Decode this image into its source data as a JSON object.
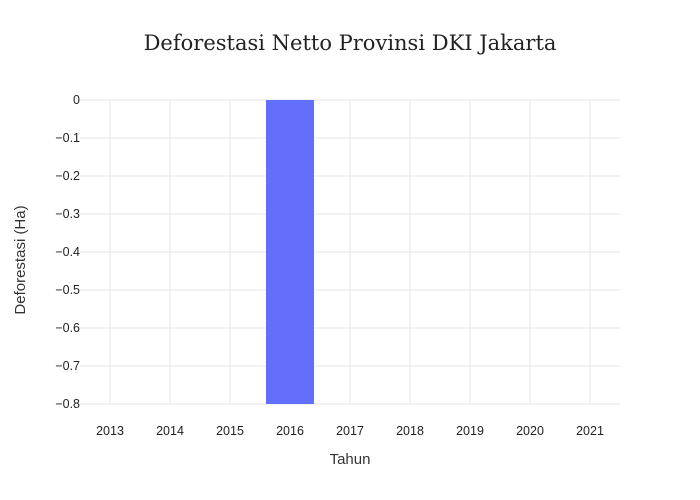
{
  "chart_data": {
    "type": "bar",
    "title": "Deforestasi Netto Provinsi DKI Jakarta",
    "xlabel": "Tahun",
    "ylabel": "Deforestasi (Ha)",
    "categories": [
      "2013",
      "2014",
      "2015",
      "2016",
      "2017",
      "2018",
      "2019",
      "2020",
      "2021"
    ],
    "values": [
      0,
      0,
      0,
      -0.8,
      0,
      0,
      0,
      0,
      0
    ],
    "ylim": [
      -0.8,
      0
    ],
    "yticks": [
      0,
      -0.1,
      -0.2,
      -0.3,
      -0.4,
      -0.5,
      -0.6,
      -0.7,
      -0.8
    ],
    "ytick_labels": [
      "0",
      "−0.1",
      "−0.2",
      "−0.3",
      "−0.4",
      "−0.5",
      "−0.6",
      "−0.7",
      "−0.8"
    ],
    "grid": true,
    "colors": {
      "bar": "#636efa",
      "grid": "#e5e5e5",
      "background": "#ffffff"
    }
  }
}
